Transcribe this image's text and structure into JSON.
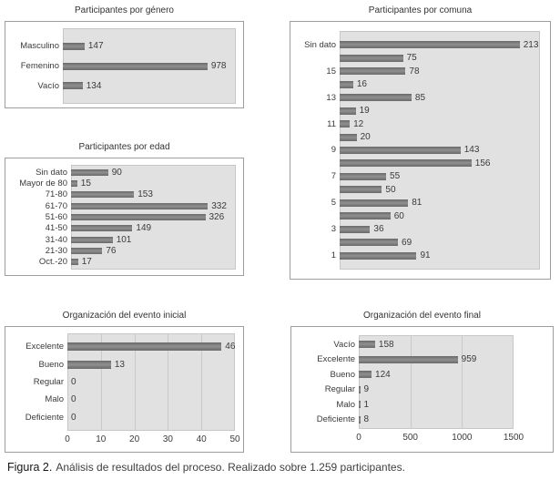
{
  "caption": {
    "label": "Figura 2.",
    "text": "Análisis de resultados del proceso. Realizado sobre 1.259 participantes."
  },
  "colors": {
    "bar": "#7f7f7f",
    "plot_background": "#e1e1e1",
    "panel_border": "#9e9e9e",
    "gridline": "#c9c9c9",
    "text": "#3a3a3a"
  },
  "chart_data": [
    {
      "id": "genero",
      "type": "bar",
      "orientation": "horizontal",
      "title": "Participantes por género",
      "categories": [
        "Masculino",
        "Femenino",
        "Vacío"
      ],
      "values": [
        147,
        978,
        134
      ],
      "xlim": [
        0,
        1170
      ],
      "ticks": [],
      "grid": false,
      "legend": "none"
    },
    {
      "id": "comuna",
      "type": "bar",
      "orientation": "horizontal",
      "title": "Participantes por comuna",
      "categories": [
        "Sin dato",
        "",
        "15",
        "",
        "13",
        "",
        "11",
        "",
        "9",
        "",
        "7",
        "",
        "5",
        "",
        "3",
        "",
        "1"
      ],
      "values": [
        213,
        75,
        78,
        16,
        85,
        19,
        12,
        20,
        143,
        156,
        55,
        50,
        81,
        60,
        36,
        69,
        91
      ],
      "xlim": [
        0,
        237
      ],
      "ticks": [],
      "grid": false,
      "legend": "none"
    },
    {
      "id": "edad",
      "type": "bar",
      "orientation": "horizontal",
      "title": "Participantes por edad",
      "categories": [
        "Sin dato",
        "Mayor de 80",
        "71-80",
        "61-70",
        "51-60",
        "41-50",
        "31-40",
        "21-30",
        "Oct.-20"
      ],
      "values": [
        90,
        15,
        153,
        332,
        326,
        149,
        101,
        76,
        17
      ],
      "xlim": [
        0,
        400
      ],
      "ticks": [],
      "grid": false,
      "legend": "none"
    },
    {
      "id": "inicial",
      "type": "bar",
      "orientation": "horizontal",
      "title": "Organización del evento inicial",
      "categories": [
        "Excelente",
        "Bueno",
        "Regular",
        "Malo",
        "Deficiente"
      ],
      "values": [
        46,
        13,
        0,
        0,
        0
      ],
      "xlim": [
        0,
        50
      ],
      "ticks": [
        0,
        10,
        20,
        30,
        40,
        50
      ],
      "grid": true,
      "legend": "none"
    },
    {
      "id": "final",
      "type": "bar",
      "orientation": "horizontal",
      "title": "Organización del evento final",
      "categories": [
        "Vacío",
        "Excelente",
        "Bueno",
        "Regular",
        "Malo",
        "Deficiente"
      ],
      "values": [
        158,
        959,
        124,
        9,
        1,
        8
      ],
      "xlim": [
        0,
        1500
      ],
      "ticks": [
        0,
        500,
        1000,
        1500
      ],
      "grid": true,
      "legend": "none"
    }
  ]
}
